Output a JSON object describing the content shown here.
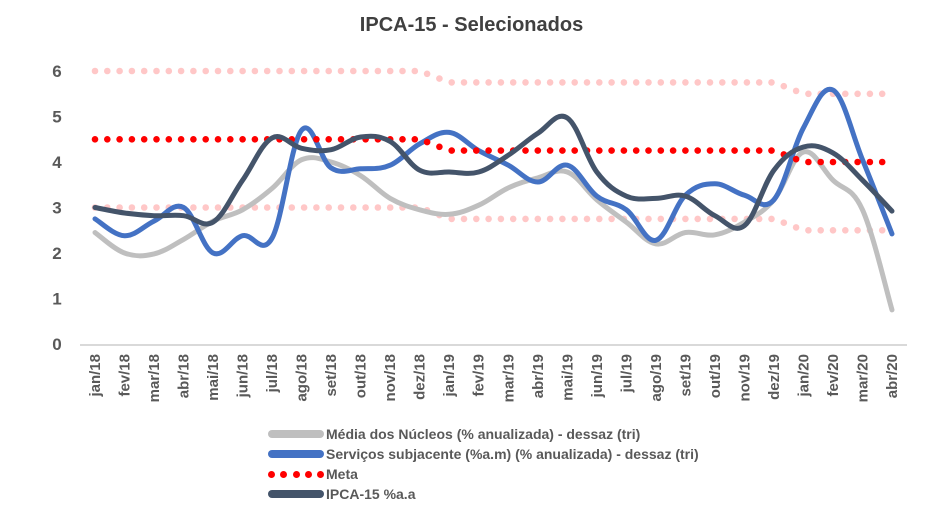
{
  "chart_data": {
    "type": "line",
    "title": "IPCA-15 - Selecionados",
    "xlabel": "",
    "ylabel": "",
    "ylim": [
      0,
      6
    ],
    "yticks": [
      "0",
      "1",
      "2",
      "3",
      "4",
      "5",
      "6"
    ],
    "grid": false,
    "legend_position": "bottom",
    "categories": [
      "jan/18",
      "fev/18",
      "mar/18",
      "abr/18",
      "mai/18",
      "jun/18",
      "jul/18",
      "ago/18",
      "set/18",
      "out/18",
      "nov/18",
      "dez/18",
      "jan/19",
      "fev/19",
      "mar/19",
      "abr/19",
      "mai/19",
      "jun/19",
      "jul/19",
      "ago/19",
      "set/19",
      "out/19",
      "nov/19",
      "dez/19",
      "jan/20",
      "fev/20",
      "mar/20",
      "abr/20"
    ],
    "series": [
      {
        "name": "Média dos Núcleos (% anualizada) - dessaz (tri)",
        "style": "solid",
        "color": "#BFBFBF",
        "values": [
          2.45,
          2.0,
          1.98,
          2.3,
          2.7,
          2.95,
          3.42,
          4.05,
          4.0,
          3.7,
          3.2,
          2.95,
          2.85,
          3.05,
          3.43,
          3.65,
          3.78,
          3.17,
          2.68,
          2.2,
          2.45,
          2.4,
          2.68,
          3.17,
          4.22,
          3.6,
          2.95,
          0.75
        ]
      },
      {
        "name": "Serviços subjacente (%a.m) (% anualizada) - dessaz (tri)",
        "style": "solid",
        "color": "#4472C4",
        "values": [
          2.75,
          2.38,
          2.7,
          3.0,
          2.0,
          2.38,
          2.33,
          4.7,
          3.87,
          3.85,
          3.93,
          4.4,
          4.65,
          4.25,
          3.93,
          3.56,
          3.93,
          3.25,
          2.95,
          2.28,
          3.27,
          3.52,
          3.27,
          3.17,
          4.75,
          5.58,
          4.05,
          2.42
        ]
      },
      {
        "name": "Meta",
        "style": "dotted",
        "color": "#FF0000",
        "values": [
          4.5,
          4.5,
          4.5,
          4.5,
          4.5,
          4.5,
          4.5,
          4.5,
          4.5,
          4.5,
          4.5,
          4.5,
          4.25,
          4.25,
          4.25,
          4.25,
          4.25,
          4.25,
          4.25,
          4.25,
          4.25,
          4.25,
          4.25,
          4.25,
          4.0,
          4.0,
          4.0,
          4.0
        ]
      },
      {
        "name": "IPCA-15 %a.a",
        "style": "solid",
        "color": "#44546A",
        "values": [
          3.0,
          2.88,
          2.82,
          2.82,
          2.68,
          3.6,
          4.53,
          4.3,
          4.27,
          4.55,
          4.45,
          3.82,
          3.78,
          3.78,
          4.15,
          4.63,
          4.97,
          3.78,
          3.25,
          3.2,
          3.25,
          2.82,
          2.6,
          3.82,
          4.33,
          4.2,
          3.6,
          2.92
        ]
      }
    ],
    "unlabeled_series": [
      {
        "name": "Meta - limite superior",
        "style": "dotted",
        "color": "#FFC7C7",
        "values": [
          6.0,
          6.0,
          6.0,
          6.0,
          6.0,
          6.0,
          6.0,
          6.0,
          6.0,
          6.0,
          6.0,
          6.0,
          5.75,
          5.75,
          5.75,
          5.75,
          5.75,
          5.75,
          5.75,
          5.75,
          5.75,
          5.75,
          5.75,
          5.75,
          5.5,
          5.5,
          5.5,
          5.5
        ]
      },
      {
        "name": "Meta - limite inferior",
        "style": "dotted",
        "color": "#FFC7C7",
        "values": [
          3.0,
          3.0,
          3.0,
          3.0,
          3.0,
          3.0,
          3.0,
          3.0,
          3.0,
          3.0,
          3.0,
          3.0,
          2.75,
          2.75,
          2.75,
          2.75,
          2.75,
          2.75,
          2.75,
          2.75,
          2.75,
          2.75,
          2.75,
          2.75,
          2.5,
          2.5,
          2.5,
          2.5
        ]
      }
    ],
    "legend": [
      {
        "label": "Média dos Núcleos (% anualizada) - dessaz (tri)",
        "style": "solid",
        "color": "#BFBFBF"
      },
      {
        "label": "Serviços subjacente (%a.m) (% anualizada) - dessaz (tri)",
        "style": "solid",
        "color": "#4472C4"
      },
      {
        "label": "Meta",
        "style": "dotted",
        "color": "#FF0000"
      },
      {
        "label": "IPCA-15 %a.a",
        "style": "solid",
        "color": "#44546A"
      }
    ]
  }
}
